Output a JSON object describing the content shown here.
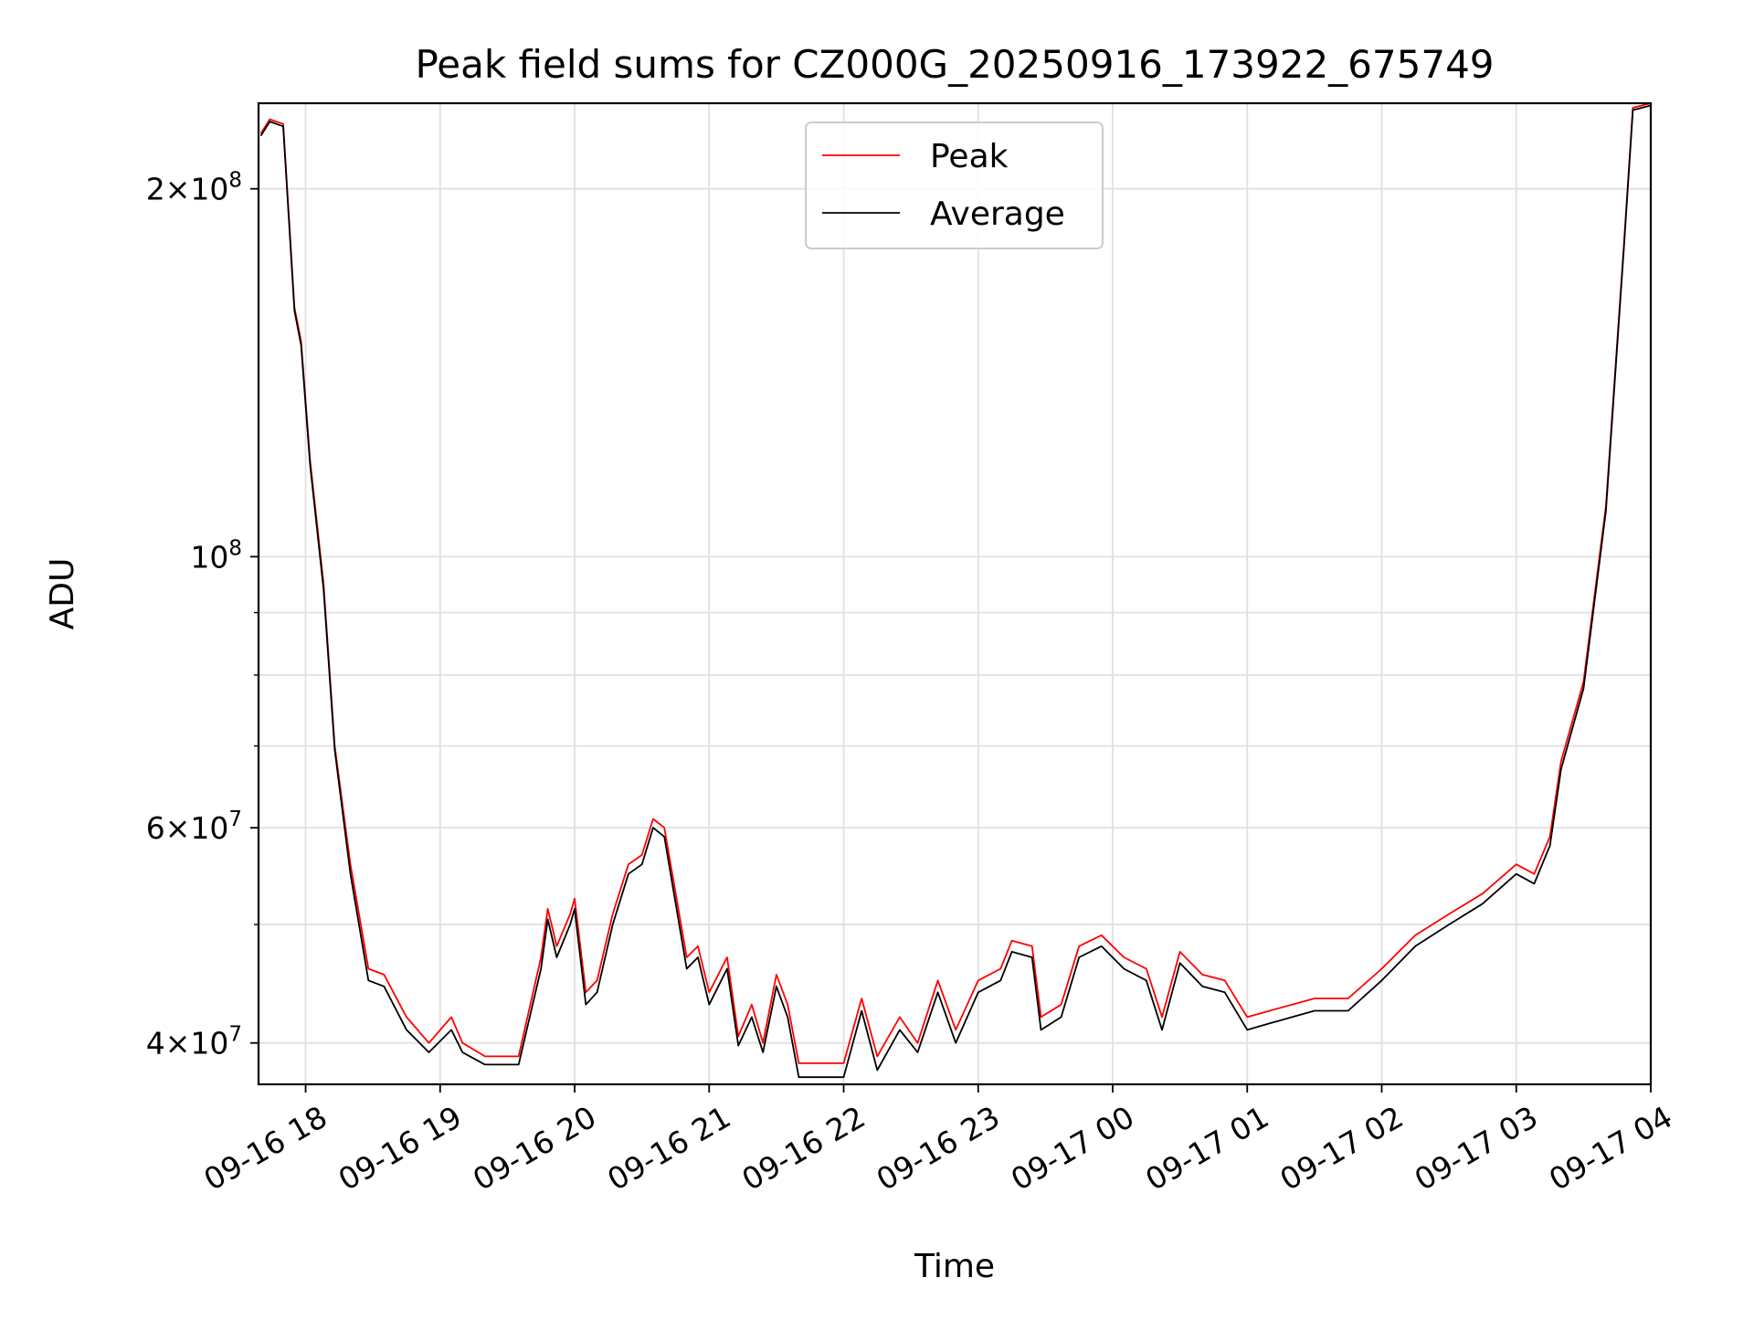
{
  "chart_data": {
    "type": "line",
    "title": "Peak field sums for CZ000G_20250916_173922_675749",
    "xlabel": "Time",
    "ylabel": "ADU",
    "y_scale": "log",
    "ylim": [
      37000000,
      235000000
    ],
    "xlim": [
      "2025-09-16 17:39",
      "2025-09-17 04:00"
    ],
    "x_ticks": [
      "09-16 18",
      "09-16 19",
      "09-16 20",
      "09-16 21",
      "09-16 22",
      "09-16 23",
      "09-17 00",
      "09-17 01",
      "09-17 02",
      "09-17 03",
      "09-17 04"
    ],
    "y_ticks": [
      {
        "value": 40000000,
        "mantissa": "4",
        "exponent": "7"
      },
      {
        "value": 60000000,
        "mantissa": "6",
        "exponent": "7"
      },
      {
        "value": 100000000,
        "mantissa": "",
        "exponent": "8"
      },
      {
        "value": 200000000,
        "mantissa": "2",
        "exponent": "8"
      }
    ],
    "grid": true,
    "legend_position": "top-center",
    "series": [
      {
        "name": "Peak",
        "color": "#ff0000",
        "points": [
          [
            "2025-09-16 17:40",
            222000000
          ],
          [
            "2025-09-16 17:44",
            228000000
          ],
          [
            "2025-09-16 17:50",
            226000000
          ],
          [
            "2025-09-16 17:55",
            160000000
          ],
          [
            "2025-09-16 17:58",
            150000000
          ],
          [
            "2025-09-16 18:02",
            120000000
          ],
          [
            "2025-09-16 18:08",
            95000000
          ],
          [
            "2025-09-16 18:13",
            70000000
          ],
          [
            "2025-09-16 18:20",
            56000000
          ],
          [
            "2025-09-16 18:28",
            46000000
          ],
          [
            "2025-09-16 18:35",
            45500000
          ],
          [
            "2025-09-16 18:45",
            42000000
          ],
          [
            "2025-09-16 18:55",
            40000000
          ],
          [
            "2025-09-16 19:05",
            42000000
          ],
          [
            "2025-09-16 19:10",
            40000000
          ],
          [
            "2025-09-16 19:20",
            39000000
          ],
          [
            "2025-09-16 19:35",
            39000000
          ],
          [
            "2025-09-16 19:45",
            47000000
          ],
          [
            "2025-09-16 19:48",
            51500000
          ],
          [
            "2025-09-16 19:52",
            48000000
          ],
          [
            "2025-09-16 19:58",
            51000000
          ],
          [
            "2025-09-16 20:00",
            52500000
          ],
          [
            "2025-09-16 20:05",
            44000000
          ],
          [
            "2025-09-16 20:10",
            45000000
          ],
          [
            "2025-09-16 20:17",
            51000000
          ],
          [
            "2025-09-16 20:24",
            56000000
          ],
          [
            "2025-09-16 20:30",
            57000000
          ],
          [
            "2025-09-16 20:35",
            61000000
          ],
          [
            "2025-09-16 20:40",
            60000000
          ],
          [
            "2025-09-16 20:50",
            47000000
          ],
          [
            "2025-09-16 20:55",
            48000000
          ],
          [
            "2025-09-16 21:00",
            44000000
          ],
          [
            "2025-09-16 21:08",
            47000000
          ],
          [
            "2025-09-16 21:13",
            40500000
          ],
          [
            "2025-09-16 21:19",
            43000000
          ],
          [
            "2025-09-16 21:24",
            40000000
          ],
          [
            "2025-09-16 21:30",
            45500000
          ],
          [
            "2025-09-16 21:35",
            43000000
          ],
          [
            "2025-09-16 21:40",
            38500000
          ],
          [
            "2025-09-16 22:00",
            38500000
          ],
          [
            "2025-09-16 22:08",
            43500000
          ],
          [
            "2025-09-16 22:15",
            39000000
          ],
          [
            "2025-09-16 22:25",
            42000000
          ],
          [
            "2025-09-16 22:33",
            40000000
          ],
          [
            "2025-09-16 22:42",
            45000000
          ],
          [
            "2025-09-16 22:50",
            41000000
          ],
          [
            "2025-09-16 23:00",
            45000000
          ],
          [
            "2025-09-16 23:10",
            46000000
          ],
          [
            "2025-09-16 23:15",
            48500000
          ],
          [
            "2025-09-16 23:24",
            48000000
          ],
          [
            "2025-09-16 23:28",
            42000000
          ],
          [
            "2025-09-16 23:37",
            43000000
          ],
          [
            "2025-09-16 23:45",
            48000000
          ],
          [
            "2025-09-16 23:55",
            49000000
          ],
          [
            "2025-09-17 00:05",
            47000000
          ],
          [
            "2025-09-17 00:15",
            46000000
          ],
          [
            "2025-09-17 00:22",
            42000000
          ],
          [
            "2025-09-17 00:30",
            47500000
          ],
          [
            "2025-09-17 00:40",
            45500000
          ],
          [
            "2025-09-17 00:50",
            45000000
          ],
          [
            "2025-09-17 01:00",
            42000000
          ],
          [
            "2025-09-17 01:10",
            42500000
          ],
          [
            "2025-09-17 01:20",
            43000000
          ],
          [
            "2025-09-17 01:30",
            43500000
          ],
          [
            "2025-09-17 01:45",
            43500000
          ],
          [
            "2025-09-17 02:00",
            46000000
          ],
          [
            "2025-09-17 02:15",
            49000000
          ],
          [
            "2025-09-17 02:30",
            51000000
          ],
          [
            "2025-09-17 02:45",
            53000000
          ],
          [
            "2025-09-17 03:00",
            56000000
          ],
          [
            "2025-09-17 03:08",
            55000000
          ],
          [
            "2025-09-17 03:15",
            59000000
          ],
          [
            "2025-09-17 03:20",
            68000000
          ],
          [
            "2025-09-17 03:30",
            79000000
          ],
          [
            "2025-09-17 03:40",
            110000000
          ],
          [
            "2025-09-17 03:48",
            180000000
          ],
          [
            "2025-09-17 03:52",
            233000000
          ],
          [
            "2025-09-17 04:00",
            235000000
          ]
        ]
      },
      {
        "name": "Average",
        "color": "#000000",
        "points": [
          [
            "2025-09-16 17:40",
            221000000
          ],
          [
            "2025-09-16 17:44",
            227000000
          ],
          [
            "2025-09-16 17:50",
            225000000
          ],
          [
            "2025-09-16 17:55",
            159000000
          ],
          [
            "2025-09-16 17:58",
            149000000
          ],
          [
            "2025-09-16 18:02",
            119000000
          ],
          [
            "2025-09-16 18:08",
            94000000
          ],
          [
            "2025-09-16 18:13",
            69500000
          ],
          [
            "2025-09-16 18:20",
            55000000
          ],
          [
            "2025-09-16 18:28",
            45000000
          ],
          [
            "2025-09-16 18:35",
            44500000
          ],
          [
            "2025-09-16 18:45",
            41000000
          ],
          [
            "2025-09-16 18:55",
            39300000
          ],
          [
            "2025-09-16 19:05",
            41000000
          ],
          [
            "2025-09-16 19:10",
            39300000
          ],
          [
            "2025-09-16 19:20",
            38400000
          ],
          [
            "2025-09-16 19:35",
            38400000
          ],
          [
            "2025-09-16 19:45",
            46000000
          ],
          [
            "2025-09-16 19:48",
            50500000
          ],
          [
            "2025-09-16 19:52",
            47000000
          ],
          [
            "2025-09-16 19:58",
            50000000
          ],
          [
            "2025-09-16 20:00",
            51500000
          ],
          [
            "2025-09-16 20:05",
            43000000
          ],
          [
            "2025-09-16 20:10",
            44000000
          ],
          [
            "2025-09-16 20:17",
            50000000
          ],
          [
            "2025-09-16 20:24",
            55000000
          ],
          [
            "2025-09-16 20:30",
            56000000
          ],
          [
            "2025-09-16 20:35",
            60000000
          ],
          [
            "2025-09-16 20:40",
            59000000
          ],
          [
            "2025-09-16 20:50",
            46000000
          ],
          [
            "2025-09-16 20:55",
            47000000
          ],
          [
            "2025-09-16 21:00",
            43000000
          ],
          [
            "2025-09-16 21:08",
            46000000
          ],
          [
            "2025-09-16 21:13",
            39800000
          ],
          [
            "2025-09-16 21:19",
            42000000
          ],
          [
            "2025-09-16 21:24",
            39300000
          ],
          [
            "2025-09-16 21:30",
            44500000
          ],
          [
            "2025-09-16 21:35",
            42000000
          ],
          [
            "2025-09-16 21:40",
            37500000
          ],
          [
            "2025-09-16 22:00",
            37500000
          ],
          [
            "2025-09-16 22:08",
            42500000
          ],
          [
            "2025-09-16 22:15",
            38000000
          ],
          [
            "2025-09-16 22:25",
            41000000
          ],
          [
            "2025-09-16 22:33",
            39300000
          ],
          [
            "2025-09-16 22:42",
            44000000
          ],
          [
            "2025-09-16 22:50",
            40000000
          ],
          [
            "2025-09-16 23:00",
            44000000
          ],
          [
            "2025-09-16 23:10",
            45000000
          ],
          [
            "2025-09-16 23:15",
            47500000
          ],
          [
            "2025-09-16 23:24",
            47000000
          ],
          [
            "2025-09-16 23:28",
            41000000
          ],
          [
            "2025-09-16 23:37",
            42000000
          ],
          [
            "2025-09-16 23:45",
            47000000
          ],
          [
            "2025-09-16 23:55",
            48000000
          ],
          [
            "2025-09-17 00:05",
            46000000
          ],
          [
            "2025-09-17 00:15",
            45000000
          ],
          [
            "2025-09-17 00:22",
            41000000
          ],
          [
            "2025-09-17 00:30",
            46500000
          ],
          [
            "2025-09-17 00:40",
            44500000
          ],
          [
            "2025-09-17 00:50",
            44000000
          ],
          [
            "2025-09-17 01:00",
            41000000
          ],
          [
            "2025-09-17 01:10",
            41500000
          ],
          [
            "2025-09-17 01:20",
            42000000
          ],
          [
            "2025-09-17 01:30",
            42500000
          ],
          [
            "2025-09-17 01:45",
            42500000
          ],
          [
            "2025-09-17 02:00",
            45000000
          ],
          [
            "2025-09-17 02:15",
            48000000
          ],
          [
            "2025-09-17 02:30",
            50000000
          ],
          [
            "2025-09-17 02:45",
            52000000
          ],
          [
            "2025-09-17 03:00",
            55000000
          ],
          [
            "2025-09-17 03:08",
            54000000
          ],
          [
            "2025-09-17 03:15",
            58000000
          ],
          [
            "2025-09-17 03:20",
            67000000
          ],
          [
            "2025-09-17 03:30",
            78000000
          ],
          [
            "2025-09-17 03:40",
            109000000
          ],
          [
            "2025-09-17 03:48",
            179000000
          ],
          [
            "2025-09-17 03:52",
            232000000
          ],
          [
            "2025-09-17 04:00",
            234000000
          ]
        ]
      }
    ]
  }
}
